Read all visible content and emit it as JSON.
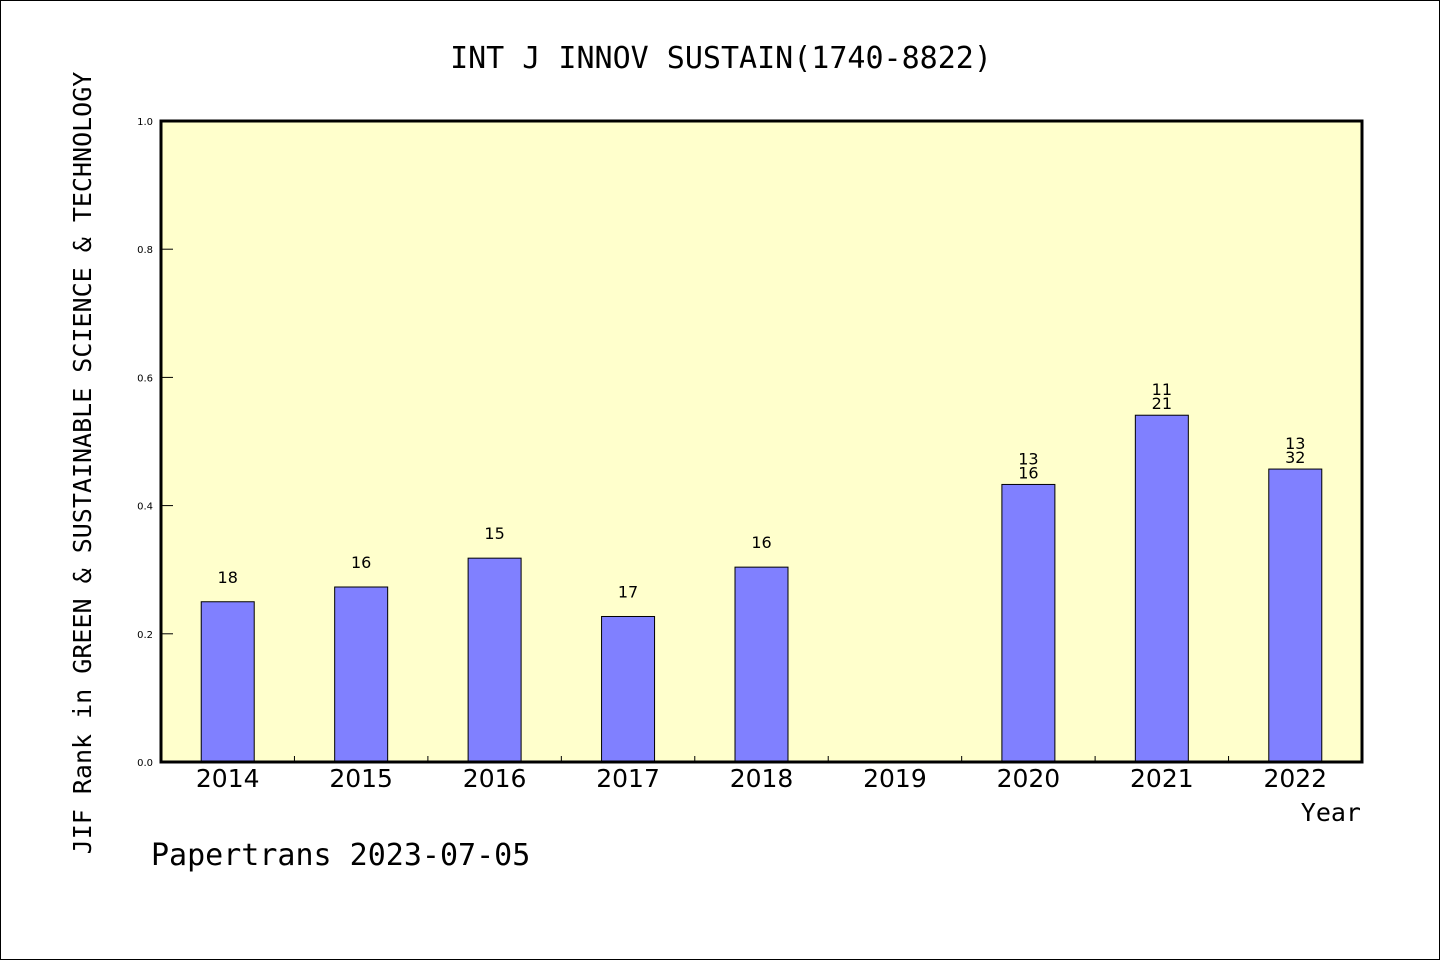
{
  "chart_data": {
    "type": "bar",
    "title": "INT J INNOV SUSTAIN(1740-8822)",
    "xlabel": "Year",
    "ylabel": "JIF Rank in GREEN & SUSTAINABLE SCIENCE & TECHNOLOGY",
    "categories": [
      "2014",
      "2015",
      "2016",
      "2017",
      "2018",
      "2019",
      "2020",
      "2021",
      "2022"
    ],
    "values": [
      0.25,
      0.273,
      0.318,
      0.227,
      0.304,
      null,
      0.433,
      0.541,
      0.457
    ],
    "bar_labels": [
      [
        "18"
      ],
      [
        "16"
      ],
      [
        "15"
      ],
      [
        "17"
      ],
      [
        "16"
      ],
      [],
      [
        "13",
        "16"
      ],
      [
        "11",
        "21"
      ],
      [
        "13",
        "32"
      ]
    ],
    "ylim": [
      0,
      1.0
    ],
    "yticks": [
      "0.0",
      "0.2",
      "0.4",
      "0.6",
      "0.8",
      "1.0"
    ],
    "grid": false,
    "colors": {
      "bar_fill": "#8080ff",
      "bar_stroke": "#000000",
      "plot_background": "#ffffcc",
      "page_background": "#ffffff"
    }
  },
  "footer": {
    "text": "Papertrans 2023-07-05"
  }
}
